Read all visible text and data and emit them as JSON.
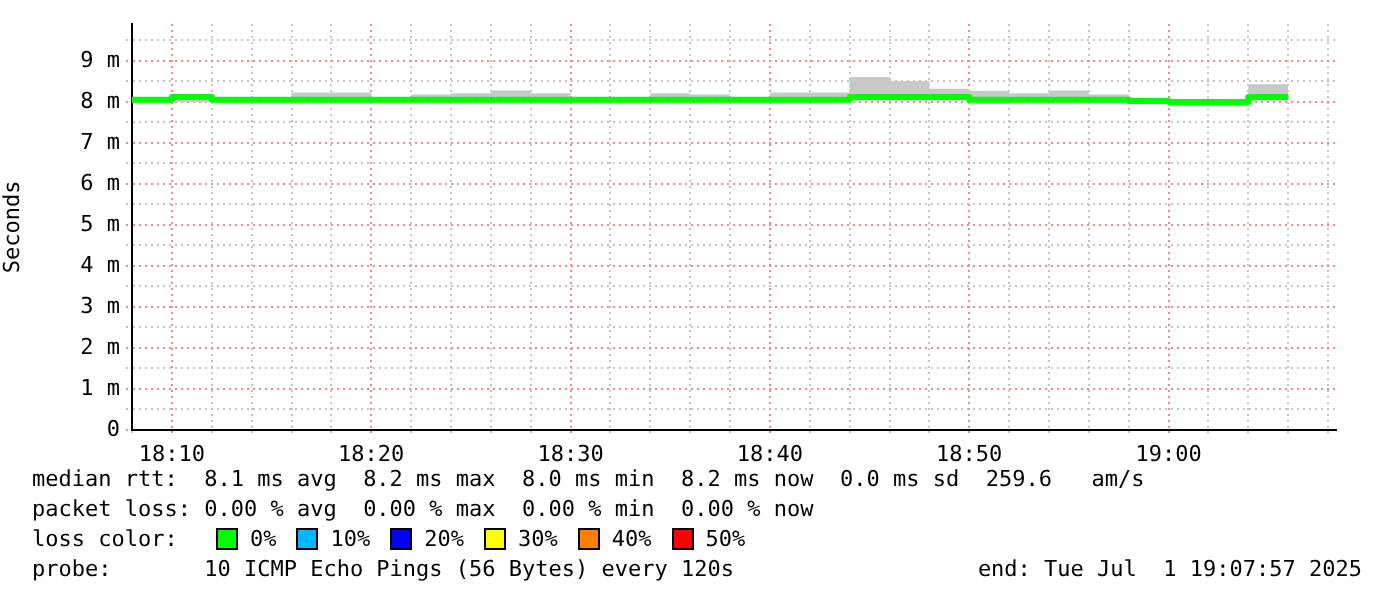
{
  "chart_data": {
    "type": "step",
    "ylabel": "Seconds",
    "x": [
      18.1333,
      18.1667,
      18.2,
      18.2333,
      18.2667,
      18.3,
      18.3333,
      18.3667,
      18.4,
      18.4333,
      18.4667,
      18.5,
      18.5333,
      18.5667,
      18.6,
      18.6333,
      18.6667,
      18.7,
      18.7333,
      18.7667,
      18.8,
      18.8333,
      18.8667,
      18.9,
      18.9333,
      18.9667,
      19,
      19.0333,
      19.0667,
      19.1
    ],
    "series": [
      {
        "color": "#00ff00",
        "values": [
          8.05,
          8.12,
          8.05,
          8.05,
          8.05,
          8.05,
          8.05,
          8.05,
          8.05,
          8.05,
          8.05,
          8.05,
          8.05,
          8.05,
          8.05,
          8.05,
          8.05,
          8.05,
          8.12,
          8.12,
          8.12,
          8.05,
          8.05,
          8.05,
          8.05,
          8.02,
          8.0,
          8.0,
          8.12,
          8.12
        ],
        "lower": [
          8.03,
          8.0,
          8.03,
          8.03,
          8.0,
          7.96,
          8.03,
          8.0,
          8.0,
          8.0,
          7.96,
          8.03,
          8.03,
          8.0,
          8.0,
          8.03,
          7.96,
          8.0,
          8.03,
          8.03,
          8.03,
          7.95,
          8.0,
          8.0,
          7.97,
          7.98,
          7.93,
          7.95,
          8.03,
          8.03
        ],
        "upper": [
          8.1,
          8.15,
          8.07,
          8.07,
          8.23,
          8.23,
          8.1,
          8.18,
          8.21,
          8.28,
          8.21,
          8.1,
          8.1,
          8.21,
          8.18,
          8.1,
          8.23,
          8.23,
          8.61,
          8.51,
          8.32,
          8.27,
          8.21,
          8.28,
          8.18,
          8.1,
          8.04,
          8.07,
          8.43,
          8.43
        ]
      }
    ],
    "xlim": [
      18.1333,
      19.14
    ],
    "xticks": [
      {
        "value": 18.1333,
        "label": null
      },
      {
        "value": 18.1667,
        "label": "18:10"
      },
      {
        "value": 18.2,
        "label": null
      },
      {
        "value": 18.2333,
        "label": null
      },
      {
        "value": 18.2667,
        "label": null
      },
      {
        "value": 18.3,
        "label": null
      },
      {
        "value": 18.3333,
        "label": "18:20"
      },
      {
        "value": 18.3667,
        "label": null
      },
      {
        "value": 18.4,
        "label": null
      },
      {
        "value": 18.4333,
        "label": null
      },
      {
        "value": 18.4667,
        "label": null
      },
      {
        "value": 18.5,
        "label": "18:30"
      },
      {
        "value": 18.5333,
        "label": null
      },
      {
        "value": 18.5667,
        "label": null
      },
      {
        "value": 18.6,
        "label": null
      },
      {
        "value": 18.6333,
        "label": null
      },
      {
        "value": 18.6667,
        "label": "18:40"
      },
      {
        "value": 18.7,
        "label": null
      },
      {
        "value": 18.7333,
        "label": null
      },
      {
        "value": 18.7667,
        "label": null
      },
      {
        "value": 18.8,
        "label": null
      },
      {
        "value": 18.8333,
        "label": "18:50"
      },
      {
        "value": 18.8667,
        "label": null
      },
      {
        "value": 18.9,
        "label": null
      },
      {
        "value": 18.9333,
        "label": null
      },
      {
        "value": 18.9667,
        "label": null
      },
      {
        "value": 19,
        "label": "19:00"
      },
      {
        "value": 19.0333,
        "label": null
      },
      {
        "value": 19.0667,
        "label": null
      },
      {
        "value": 19.1,
        "label": null
      },
      {
        "value": 19.1333,
        "label": null
      }
    ],
    "ylim": [
      0,
      9.9
    ],
    "yticks": [
      0,
      {
        "value": 0.5,
        "label": null
      },
      {
        "value": 1,
        "label": "1 m"
      },
      {
        "value": 1.5,
        "label": null
      },
      {
        "value": 2,
        "label": "2 m"
      },
      {
        "value": 2.5,
        "label": null
      },
      {
        "value": 3,
        "label": "3 m"
      },
      {
        "value": 3.5,
        "label": null
      },
      {
        "value": 4,
        "label": "4 m"
      },
      {
        "value": 4.5,
        "label": null
      },
      {
        "value": 5,
        "label": "5 m"
      },
      {
        "value": 5.5,
        "label": null
      },
      {
        "value": 6,
        "label": "6 m"
      },
      {
        "value": 6.5,
        "label": null
      },
      {
        "value": 7,
        "label": "7 m"
      },
      {
        "value": 7.5,
        "label": null
      },
      {
        "value": 8,
        "label": "8 m"
      },
      {
        "value": 8.5,
        "label": null
      },
      {
        "value": 9,
        "label": "9 m"
      },
      {
        "value": 9.5,
        "label": null
      }
    ],
    "grid": true,
    "marker": "none",
    "line_style": "solid",
    "annotations": [
      "median rtt:  8.1 ms avg  8.2 ms max  8.0 ms min  8.2 ms now  0.0 ms sd  259.6   am/s",
      "packet loss: 0.00 % avg  0.00 % max  0.00 % min  0.00 % now",
      "loss color:",
      "0%",
      "10%",
      "20%",
      "30%",
      "40%",
      "50%",
      "probe:       10 ICMP Echo Pings (56 Bytes) every 120s",
      "end: Tue Jul  1 19:07:57 2025"
    ]
  }
}
